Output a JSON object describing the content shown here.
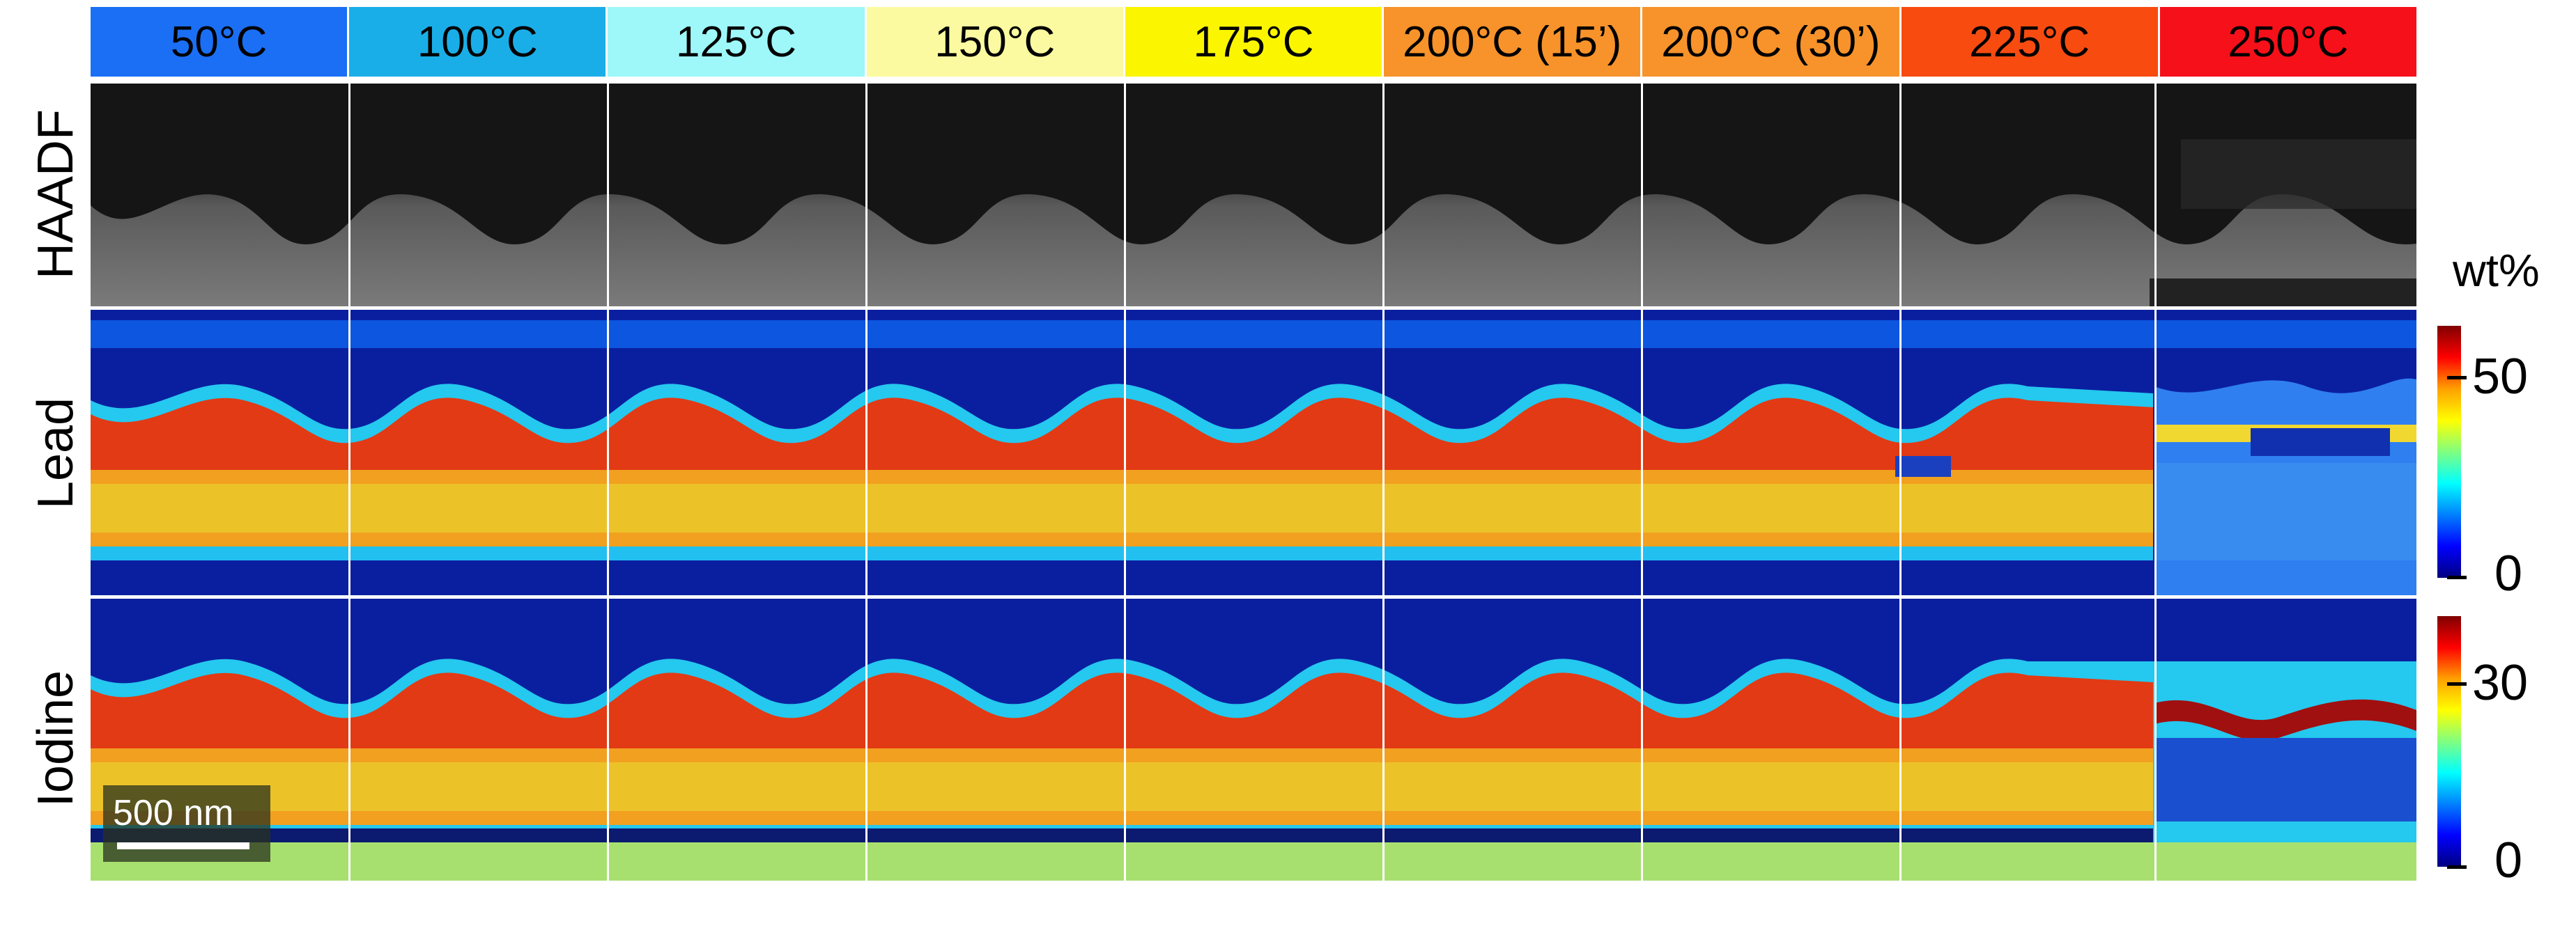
{
  "headers": [
    {
      "label": "50°C",
      "color": "#1a6ff5"
    },
    {
      "label": "100°C",
      "color": "#1aaee8"
    },
    {
      "label": "125°C",
      "color": "#9ef7f9"
    },
    {
      "label": "150°C",
      "color": "#fcfaa0"
    },
    {
      "label": "175°C",
      "color": "#fbf500"
    },
    {
      "label": "200°C (15’)",
      "color": "#f7932a"
    },
    {
      "label": "200°C (30’)",
      "color": "#f7932a"
    },
    {
      "label": "225°C",
      "color": "#f84b10"
    },
    {
      "label": "250°C",
      "color": "#f5101a"
    }
  ],
  "rows": {
    "haadf": "HAADF",
    "lead": "Lead",
    "iodine": "Iodine"
  },
  "scalebar": "500 nm",
  "colorbar": {
    "unit": "wt%",
    "lead": {
      "top": "50",
      "bottom": "0"
    },
    "iodine": {
      "top": "30",
      "bottom": "0"
    }
  }
}
